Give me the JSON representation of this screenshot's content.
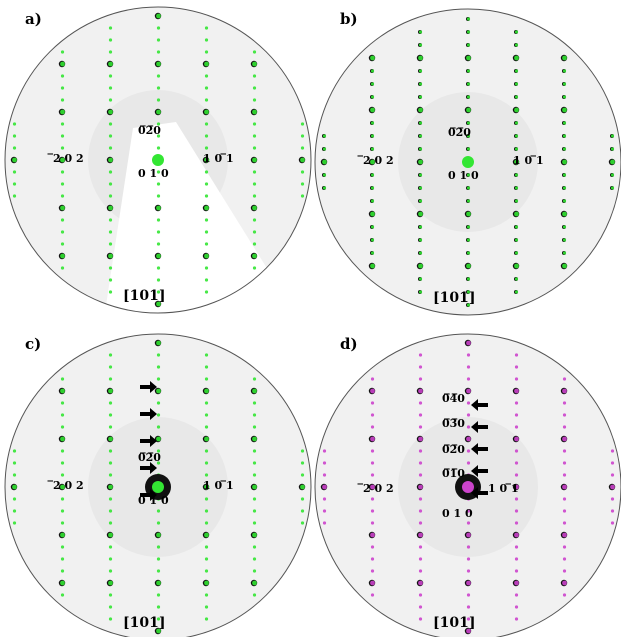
{
  "figure": {
    "panels": [
      {
        "label": "a)",
        "zone_axis": "[101]",
        "overlay_color": "#33e633",
        "shadow_wedge": true,
        "indices": [
          {
            "text": "0̅2̅0"
          },
          {
            "text": "̅2 0 2"
          },
          {
            "text": "1 0 ̅1"
          },
          {
            "text": "0 1 0"
          }
        ],
        "arrows": 0
      },
      {
        "label": "b)",
        "zone_axis": "[101]",
        "overlay_color": "#33e633",
        "shadow_wedge": false,
        "indices": [
          {
            "text": "0̅2̅0"
          },
          {
            "text": "̅2 0 2"
          },
          {
            "text": "1 0 ̅1"
          },
          {
            "text": "0 1 0"
          }
        ],
        "arrows": 0
      },
      {
        "label": "c)",
        "zone_axis": "[101]",
        "overlay_color": "#33e633",
        "shadow_wedge": false,
        "indices": [
          {
            "text": "0̅2̅0"
          },
          {
            "text": "̅2 0 2"
          },
          {
            "text": "1 0 ̅1"
          },
          {
            "text": "0 1 0"
          }
        ],
        "arrows": 5
      },
      {
        "label": "d)",
        "zone_axis": "[101]",
        "overlay_color": "#cc44cc",
        "shadow_wedge": false,
        "indices": [
          {
            "text": "0̅4̅0"
          },
          {
            "text": "0̅3̅0"
          },
          {
            "text": "0̅2̅0"
          },
          {
            "text": "0̅1̅0"
          },
          {
            "text": "̅2 0 2"
          },
          {
            "text": "1 0 ̅1"
          },
          {
            "text": "0 1 0"
          }
        ],
        "arrows": 5
      }
    ]
  }
}
